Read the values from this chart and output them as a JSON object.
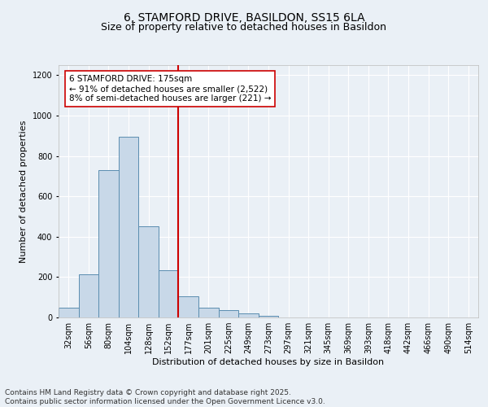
{
  "title1": "6, STAMFORD DRIVE, BASILDON, SS15 6LA",
  "title2": "Size of property relative to detached houses in Basildon",
  "xlabel": "Distribution of detached houses by size in Basildon",
  "ylabel": "Number of detached properties",
  "bin_labels": [
    "32sqm",
    "56sqm",
    "80sqm",
    "104sqm",
    "128sqm",
    "152sqm",
    "177sqm",
    "201sqm",
    "225sqm",
    "249sqm",
    "273sqm",
    "297sqm",
    "321sqm",
    "345sqm",
    "369sqm",
    "393sqm",
    "418sqm",
    "442sqm",
    "466sqm",
    "490sqm",
    "514sqm"
  ],
  "bar_values": [
    50,
    215,
    730,
    895,
    450,
    235,
    105,
    50,
    35,
    20,
    10,
    0,
    0,
    0,
    0,
    0,
    0,
    0,
    0,
    0,
    0
  ],
  "bar_color": "#c8d8e8",
  "bar_edge_color": "#5b8db0",
  "vline_color": "#cc0000",
  "annotation_text": "6 STAMFORD DRIVE: 175sqm\n← 91% of detached houses are smaller (2,522)\n8% of semi-detached houses are larger (221) →",
  "annotation_box_color": "#ffffff",
  "annotation_box_edge_color": "#cc0000",
  "ylim": [
    0,
    1250
  ],
  "yticks": [
    0,
    200,
    400,
    600,
    800,
    1000,
    1200
  ],
  "footnote": "Contains HM Land Registry data © Crown copyright and database right 2025.\nContains public sector information licensed under the Open Government Licence v3.0.",
  "background_color": "#eaf0f6",
  "grid_color": "#ffffff",
  "title_fontsize": 10,
  "subtitle_fontsize": 9,
  "axis_label_fontsize": 8,
  "tick_fontsize": 7,
  "annotation_fontsize": 7.5,
  "footnote_fontsize": 6.5
}
